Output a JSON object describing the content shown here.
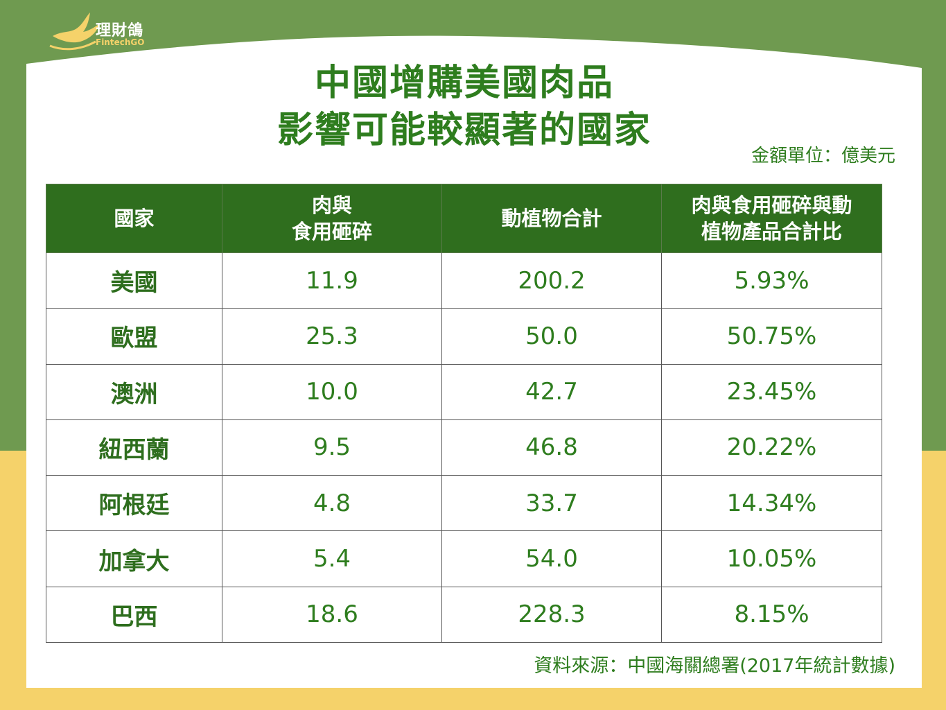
{
  "colors": {
    "header_bg": "#2f6e1e",
    "text_green": "#2e7d1e",
    "bg_green": "#6f9a50",
    "bg_yellow": "#f5d26a"
  },
  "logo": {
    "cn": "理財鴿",
    "en": "FintechGO",
    "icon": "dove-icon"
  },
  "title": {
    "line1": "中國增購美國肉品",
    "line2": "影響可能較顯著的國家"
  },
  "unit_note": "金額單位：億美元",
  "chart_data": {
    "type": "table",
    "columns": [
      {
        "line1": "國家",
        "line2": ""
      },
      {
        "line1": "肉與",
        "line2": "食用砸碎"
      },
      {
        "line1": "動植物合計",
        "line2": ""
      },
      {
        "line1": "肉與食用砸碎與動",
        "line2": "植物產品合計比"
      }
    ],
    "rows": [
      {
        "country": "美國",
        "meat": "11.9",
        "total": "200.2",
        "ratio": "5.93%"
      },
      {
        "country": "歐盟",
        "meat": "25.3",
        "total": "50.0",
        "ratio": "50.75%"
      },
      {
        "country": "澳洲",
        "meat": "10.0",
        "total": "42.7",
        "ratio": "23.45%"
      },
      {
        "country": "紐西蘭",
        "meat": "9.5",
        "total": "46.8",
        "ratio": "20.22%"
      },
      {
        "country": "阿根廷",
        "meat": "4.8",
        "total": "33.7",
        "ratio": "14.34%"
      },
      {
        "country": "加拿大",
        "meat": "5.4",
        "total": "54.0",
        "ratio": "10.05%"
      },
      {
        "country": "巴西",
        "meat": "18.6",
        "total": "228.3",
        "ratio": "8.15%"
      }
    ]
  },
  "source": "資料來源：中國海關總署(2017年統計數據)"
}
